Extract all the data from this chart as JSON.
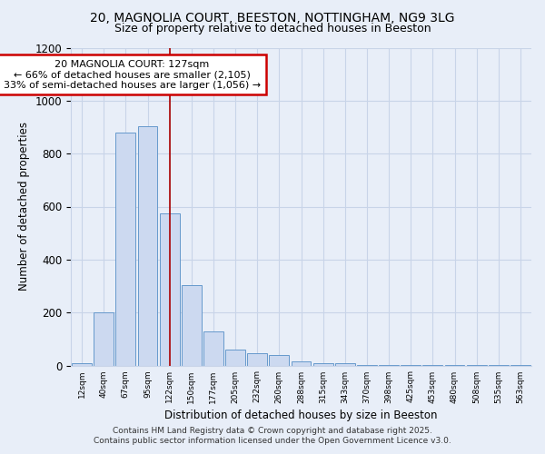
{
  "title1": "20, MAGNOLIA COURT, BEESTON, NOTTINGHAM, NG9 3LG",
  "title2": "Size of property relative to detached houses in Beeston",
  "xlabel": "Distribution of detached houses by size in Beeston",
  "ylabel": "Number of detached properties",
  "categories": [
    "12sqm",
    "40sqm",
    "67sqm",
    "95sqm",
    "122sqm",
    "150sqm",
    "177sqm",
    "205sqm",
    "232sqm",
    "260sqm",
    "288sqm",
    "315sqm",
    "343sqm",
    "370sqm",
    "398sqm",
    "425sqm",
    "453sqm",
    "480sqm",
    "508sqm",
    "535sqm",
    "563sqm"
  ],
  "values": [
    10,
    200,
    880,
    905,
    575,
    305,
    130,
    60,
    45,
    40,
    15,
    10,
    10,
    2,
    2,
    2,
    2,
    2,
    2,
    2,
    2
  ],
  "bar_color": "#ccd9f0",
  "bar_edge_color": "#6699cc",
  "vline_x": 4,
  "vline_color": "#aa0000",
  "annotation_text": "20 MAGNOLIA COURT: 127sqm\n← 66% of detached houses are smaller (2,105)\n33% of semi-detached houses are larger (1,056) →",
  "annotation_box_color": "#cc0000",
  "ylim": [
    0,
    1200
  ],
  "yticks": [
    0,
    200,
    400,
    600,
    800,
    1000,
    1200
  ],
  "background_color": "#e8eef8",
  "grid_color": "#c8d4e8",
  "footer1": "Contains HM Land Registry data © Crown copyright and database right 2025.",
  "footer2": "Contains public sector information licensed under the Open Government Licence v3.0."
}
